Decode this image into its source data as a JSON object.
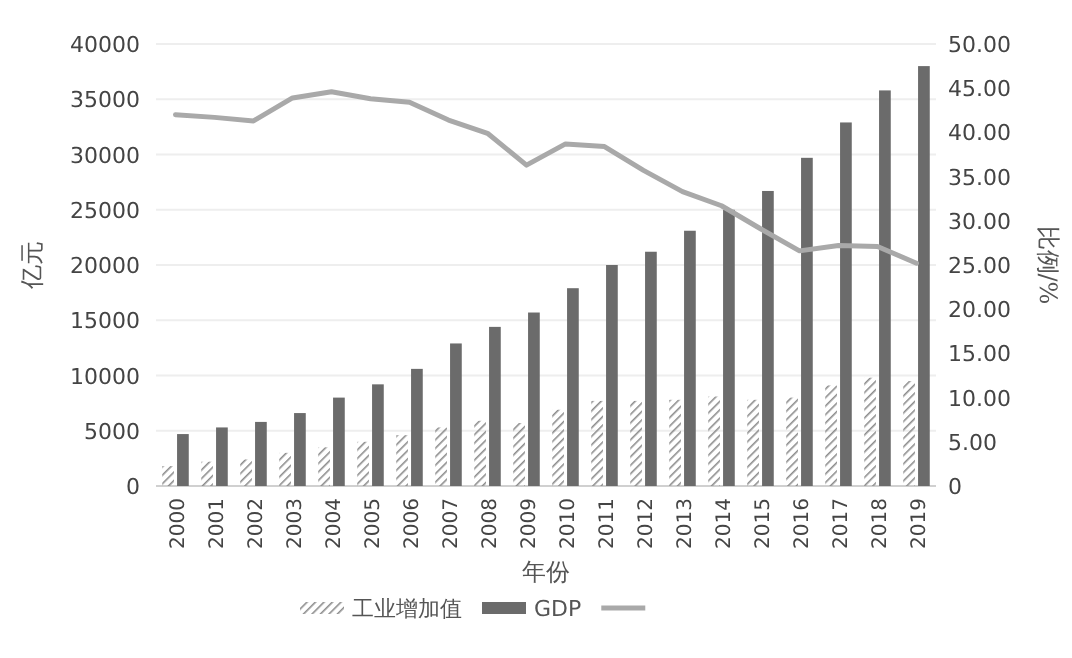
{
  "chart_data": {
    "type": "bar",
    "xlabel": "年份",
    "ylabel": "亿元",
    "y2label": "比例/%",
    "legend": "bottom",
    "grid": "y",
    "categories": [
      "2000",
      "2001",
      "2002",
      "2003",
      "2004",
      "2005",
      "2006",
      "2007",
      "2008",
      "2009",
      "2010",
      "2011",
      "2012",
      "2013",
      "2014",
      "2015",
      "2016",
      "2017",
      "2018",
      "2019"
    ],
    "ylim": [
      0,
      40000
    ],
    "yticks": [
      0,
      5000,
      10000,
      15000,
      20000,
      25000,
      30000,
      35000,
      40000
    ],
    "y2lim": [
      0,
      50
    ],
    "y2ticks": [
      {
        "value": 0,
        "label": "0"
      },
      {
        "value": 5,
        "label": "5.00"
      },
      {
        "value": 10,
        "label": "10.00"
      },
      {
        "value": 15,
        "label": "15.00"
      },
      {
        "value": 20,
        "label": "20.00"
      },
      {
        "value": 25,
        "label": "25.00"
      },
      {
        "value": 30,
        "label": "30.00"
      },
      {
        "value": 35,
        "label": "35.00"
      },
      {
        "value": 40,
        "label": "40.00"
      },
      {
        "value": 45,
        "label": "45.00"
      },
      {
        "value": 50,
        "label": "50.00"
      }
    ],
    "series": [
      {
        "name": "工业增加值",
        "color": "#8c8c8c",
        "values": [
          1800,
          2200,
          2400,
          3000,
          3500,
          4000,
          4600,
          5300,
          5900,
          5700,
          6900,
          7700,
          7700,
          7800,
          8100,
          7800,
          8000,
          9100,
          9800,
          9500
        ]
      },
      {
        "name": "GDP",
        "color": "#6b6b6b",
        "values": [
          4700,
          5300,
          5800,
          6600,
          8000,
          9200,
          10600,
          12900,
          14400,
          15700,
          17900,
          20000,
          21200,
          23100,
          25000,
          26700,
          29700,
          32900,
          35800,
          38000
        ]
      },
      {
        "type": "line",
        "axis": "y2",
        "color": "#a9a9a9",
        "values": [
          42.0,
          41.7,
          41.3,
          43.9,
          44.6,
          43.8,
          43.4,
          41.4,
          39.9,
          36.3,
          38.7,
          38.4,
          35.7,
          33.3,
          31.7,
          29.1,
          26.6,
          27.2,
          27.1,
          25.2
        ]
      }
    ]
  }
}
